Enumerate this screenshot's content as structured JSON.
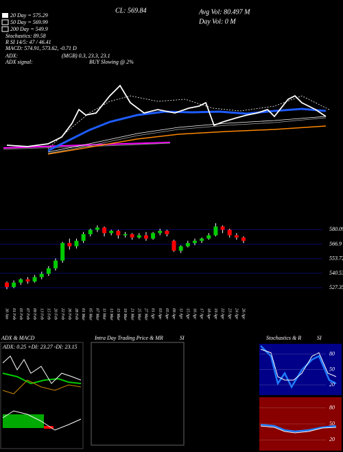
{
  "header": {
    "cl": "CL: 569.84",
    "avg_vol": "Avg Vol: 80.497 M",
    "day_vol": "Day Vol: 0  M",
    "ma20": "20 Day = 575.29",
    "ma50": "50 Day = 569.99",
    "ma200": "200 Day = 549.9",
    "stochastics": "Stochastics: 89.58",
    "rsi": "R  SI 14/5: 47 / 46.41",
    "macd": "MACD: 574.91, 573.62, -0.71 D",
    "adx": "ADX:",
    "adx_vals": "(MGB) 0.3, 23.3, 23.1",
    "adx_signal": "ADX  signal:",
    "adx_signal_val": "BUY Slowing @ 2%"
  },
  "chart_data": {
    "type": "candlestick",
    "categories": [
      "30 Jan",
      "01 Feb",
      "05 Feb",
      "07 Feb",
      "09 Feb",
      "13 Feb",
      "15 Feb",
      "20 Feb",
      "22 Feb",
      "26 Feb",
      "28 Feb",
      "01 Mar",
      "05 Mar",
      "07 Mar",
      "11 Mar",
      "13 Mar",
      "15 Mar",
      "19 Mar",
      "21 Mar",
      "25 Mar",
      "27 Mar",
      "01 Apr",
      "03 Apr",
      "05 Apr",
      "09 Apr",
      "11 Apr",
      "15 Apr",
      "16 Apr",
      "17 Apr",
      "18 Apr",
      "19 Apr",
      "22 Apr",
      "23 Apr",
      "24 Apr",
      "26 Apr"
    ],
    "open": [
      532,
      528,
      532,
      535,
      533,
      537,
      540,
      545,
      552,
      568,
      565,
      570,
      576,
      580,
      582,
      577,
      579,
      575,
      576,
      573,
      575,
      572,
      577,
      579,
      570,
      561,
      565,
      568,
      570,
      572,
      575,
      583,
      580,
      575,
      573
    ],
    "high": [
      533,
      534,
      536,
      537,
      539,
      542,
      547,
      554,
      569,
      572,
      572,
      578,
      581,
      584,
      583,
      580,
      580,
      578,
      577,
      577,
      578,
      578,
      581,
      580,
      571,
      566,
      570,
      572,
      573,
      577,
      586,
      584,
      581,
      577,
      574
    ],
    "low": [
      526,
      527,
      530,
      531,
      532,
      535,
      538,
      543,
      550,
      562,
      563,
      568,
      574,
      578,
      574,
      575,
      572,
      573,
      571,
      572,
      570,
      571,
      575,
      574,
      560,
      559,
      564,
      566,
      568,
      571,
      574,
      577,
      573,
      571,
      568
    ],
    "close": [
      528,
      532,
      535,
      533,
      537,
      540,
      545,
      552,
      568,
      565,
      570,
      576,
      580,
      582,
      577,
      579,
      575,
      576,
      573,
      575,
      572,
      577,
      579,
      576,
      561,
      565,
      568,
      570,
      572,
      575,
      583,
      580,
      575,
      573,
      570
    ],
    "up_color": "#00cc00",
    "down_color": "#ff0000",
    "ylim": [
      515,
      599
    ],
    "yticks": [
      527.35,
      540.53,
      553.72,
      566.9,
      580.09
    ],
    "grid": true
  },
  "panels": {
    "adx_title": "ADX  & MACD",
    "adx_text": "ADX: 0.25  +DI: 23.27  -DI: 23.15",
    "intraday_title": "Intra  Day Trading Price  & MR",
    "intraday_si": "SI",
    "stoch_title": "Stochastics  & R",
    "stoch_si": "SI",
    "stoch_ticks": [
      80,
      50,
      20
    ],
    "rsi_ticks": [
      80,
      50,
      20
    ]
  }
}
